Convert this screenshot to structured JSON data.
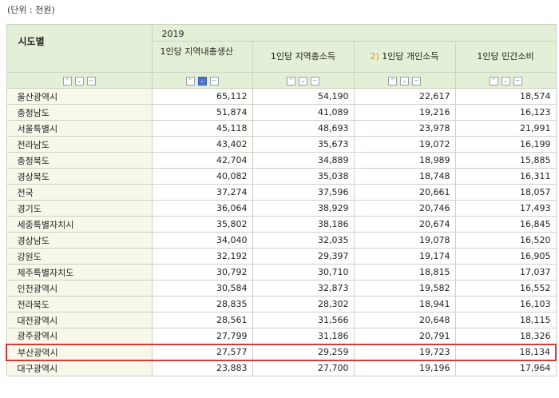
{
  "unit_label": "(단위 : 천원)",
  "header": {
    "region_label": "시도별",
    "year": "2019",
    "columns": [
      {
        "label": "1인당 지역내총생산",
        "note": ""
      },
      {
        "label": "1인당 지역총소득",
        "note": ""
      },
      {
        "label": "1인당 개인소득",
        "note": "2)"
      },
      {
        "label": "1인당 민간소비",
        "note": ""
      }
    ]
  },
  "controls": {
    "up": "⌃",
    "down": "⌄",
    "remove": "−"
  },
  "rows": [
    {
      "region": "울산광역시",
      "values": [
        "65,112",
        "54,190",
        "22,617",
        "18,574"
      ]
    },
    {
      "region": "충청남도",
      "values": [
        "51,874",
        "41,089",
        "19,216",
        "16,123"
      ]
    },
    {
      "region": "서울특별시",
      "values": [
        "45,118",
        "48,693",
        "23,978",
        "21,991"
      ]
    },
    {
      "region": "전라남도",
      "values": [
        "43,402",
        "35,673",
        "19,072",
        "16,199"
      ]
    },
    {
      "region": "충청북도",
      "values": [
        "42,704",
        "34,889",
        "18,989",
        "15,885"
      ]
    },
    {
      "region": "경상북도",
      "values": [
        "40,082",
        "35,038",
        "18,748",
        "16,311"
      ]
    },
    {
      "region": "전국",
      "values": [
        "37,274",
        "37,596",
        "20,661",
        "18,057"
      ]
    },
    {
      "region": "경기도",
      "values": [
        "36,064",
        "38,929",
        "20,746",
        "17,493"
      ]
    },
    {
      "region": "세종특별자치시",
      "values": [
        "35,802",
        "38,186",
        "20,674",
        "16,845"
      ]
    },
    {
      "region": "경상남도",
      "values": [
        "34,040",
        "32,035",
        "19,078",
        "16,520"
      ]
    },
    {
      "region": "강원도",
      "values": [
        "32,192",
        "29,397",
        "19,174",
        "16,905"
      ]
    },
    {
      "region": "제주특별자치도",
      "values": [
        "30,792",
        "30,710",
        "18,815",
        "17,037"
      ]
    },
    {
      "region": "인천광역시",
      "values": [
        "30,584",
        "32,873",
        "19,582",
        "16,552"
      ]
    },
    {
      "region": "전라북도",
      "values": [
        "28,835",
        "28,302",
        "18,941",
        "16,103"
      ]
    },
    {
      "region": "대전광역시",
      "values": [
        "28,561",
        "31,566",
        "20,648",
        "18,115"
      ]
    },
    {
      "region": "광주광역시",
      "values": [
        "27,799",
        "31,186",
        "20,791",
        "18,326"
      ]
    },
    {
      "region": "부산광역시",
      "values": [
        "27,577",
        "29,259",
        "19,723",
        "18,134"
      ],
      "highlighted": true
    },
    {
      "region": "대구광역시",
      "values": [
        "23,883",
        "27,700",
        "19,196",
        "17,964"
      ]
    }
  ]
}
